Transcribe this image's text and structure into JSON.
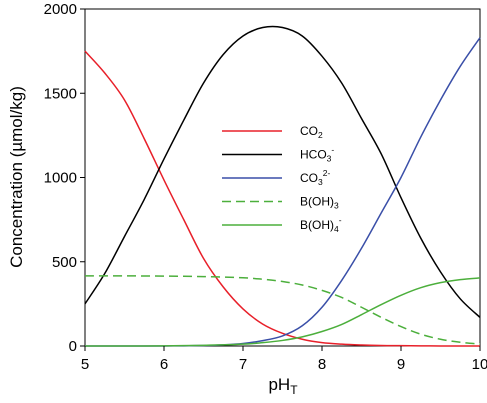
{
  "chart_data": {
    "type": "line",
    "xlabel": "pH",
    "xlabel_sub": "T",
    "ylabel": "Concentration (µmol/kg)",
    "xlim": [
      5,
      10
    ],
    "ylim": [
      0,
      2000
    ],
    "xticks": [
      5,
      6,
      7,
      8,
      9,
      10
    ],
    "yticks": [
      0,
      500,
      1000,
      1500,
      2000
    ],
    "grid": false,
    "legend_position": "center",
    "series": [
      {
        "name": "CO2",
        "label_base": "CO",
        "label_sub": "2",
        "label_sup": "",
        "label_tail": "",
        "color": "#e8202a",
        "dash": "solid",
        "x": [
          5,
          5.25,
          5.5,
          5.75,
          6,
          6.25,
          6.5,
          6.75,
          7,
          7.25,
          7.5,
          7.75,
          8,
          8.25,
          8.5,
          8.75,
          9,
          9.25,
          9.5,
          9.75,
          10
        ],
        "y": [
          1750,
          1620,
          1460,
          1230,
          985,
          750,
          520,
          350,
          220,
          130,
          75,
          40,
          20,
          11,
          6,
          3,
          2,
          1,
          0,
          0,
          0
        ]
      },
      {
        "name": "HCO3-",
        "label_base": "HCO",
        "label_sub": "3",
        "label_sup": "-",
        "label_tail": "",
        "color": "#000000",
        "dash": "solid",
        "x": [
          5,
          5.25,
          5.5,
          5.75,
          6,
          6.25,
          6.5,
          6.75,
          7,
          7.25,
          7.5,
          7.75,
          8,
          8.25,
          8.5,
          8.75,
          9,
          9.25,
          9.5,
          9.75,
          10
        ],
        "y": [
          250,
          430,
          650,
          870,
          1110,
          1340,
          1560,
          1730,
          1840,
          1890,
          1890,
          1840,
          1720,
          1560,
          1350,
          1140,
          880,
          640,
          440,
          280,
          170
        ]
      },
      {
        "name": "CO32-",
        "label_base": "CO",
        "label_sub": "3",
        "label_sup": "2-",
        "label_tail": "",
        "color": "#3a4fa8",
        "dash": "solid",
        "x": [
          5,
          5.25,
          5.5,
          5.75,
          6,
          6.25,
          6.5,
          6.75,
          7,
          7.25,
          7.5,
          7.75,
          8,
          8.25,
          8.5,
          8.75,
          9,
          9.25,
          9.5,
          9.75,
          10
        ],
        "y": [
          0,
          0,
          0,
          0,
          0,
          1,
          3,
          7,
          15,
          32,
          60,
          120,
          230,
          390,
          580,
          790,
          1000,
          1240,
          1460,
          1660,
          1830
        ]
      },
      {
        "name": "B(OH)3",
        "label_base": "B(OH)",
        "label_sub": "3",
        "label_sup": "",
        "label_tail": "",
        "color": "#4caf3c",
        "dash": "dashed",
        "x": [
          5,
          5.5,
          6,
          6.5,
          7,
          7.25,
          7.5,
          7.75,
          8,
          8.25,
          8.5,
          8.75,
          9,
          9.25,
          9.5,
          9.75,
          10
        ],
        "y": [
          416,
          416,
          415,
          412,
          405,
          396,
          383,
          362,
          330,
          288,
          230,
          170,
          115,
          70,
          40,
          22,
          12
        ]
      },
      {
        "name": "B(OH)4-",
        "label_base": "B(OH)",
        "label_sub": "4",
        "label_sup": "-",
        "label_tail": "",
        "color": "#4caf3c",
        "dash": "solid",
        "x": [
          5,
          5.5,
          6,
          6.5,
          7,
          7.25,
          7.5,
          7.75,
          8,
          8.25,
          8.5,
          8.75,
          9,
          9.25,
          9.5,
          9.75,
          10
        ],
        "y": [
          0,
          0,
          1,
          4,
          11,
          20,
          33,
          54,
          86,
          128,
          186,
          246,
          301,
          346,
          376,
          394,
          404
        ]
      }
    ]
  }
}
